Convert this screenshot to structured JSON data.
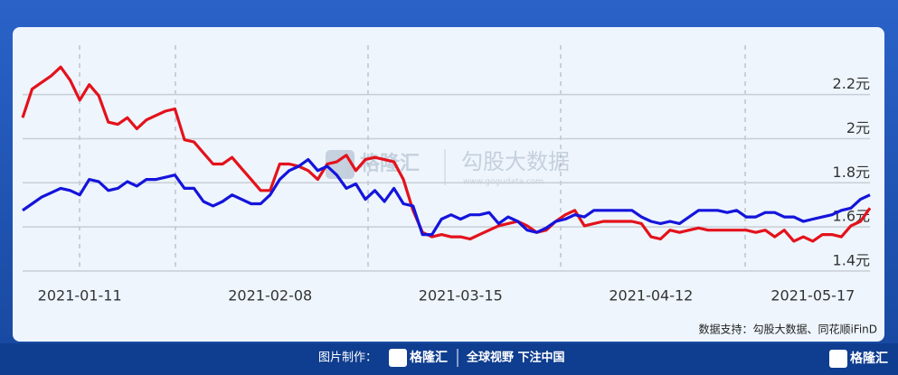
{
  "chart_data": {
    "type": "line",
    "categories": [
      null,
      null,
      null,
      null,
      null,
      null,
      "2021-01-11",
      null,
      null,
      null,
      null,
      null,
      null,
      null,
      null,
      null,
      null,
      null,
      null,
      null,
      null,
      null,
      null,
      null,
      null,
      null,
      "2021-02-08",
      null,
      null,
      null,
      null,
      null,
      null,
      null,
      null,
      null,
      null,
      null,
      null,
      null,
      null,
      null,
      null,
      null,
      null,
      null,
      "2021-03-15",
      null,
      null,
      null,
      null,
      null,
      null,
      null,
      null,
      null,
      null,
      null,
      null,
      null,
      null,
      null,
      null,
      null,
      null,
      null,
      "2021-04-12",
      null,
      null,
      null,
      null,
      null,
      null,
      null,
      null,
      null,
      null,
      null,
      null,
      null,
      null,
      null,
      null,
      "2021-05-17",
      null,
      null,
      null,
      null,
      null,
      null
    ],
    "series": [
      {
        "color": "#e3121c",
        "values": [
          2.05,
          2.18,
          2.21,
          2.24,
          2.28,
          2.22,
          2.13,
          2.2,
          2.15,
          2.03,
          2.02,
          2.05,
          2.0,
          2.04,
          2.06,
          2.08,
          2.09,
          1.95,
          1.94,
          1.89,
          1.84,
          1.84,
          1.87,
          1.82,
          1.77,
          1.72,
          1.72,
          1.84,
          1.84,
          1.83,
          1.81,
          1.77,
          1.84,
          1.85,
          1.88,
          1.81,
          1.86,
          1.87,
          1.86,
          1.85,
          1.77,
          1.63,
          1.53,
          1.51,
          1.52,
          1.51,
          1.51,
          1.5,
          1.52,
          1.54,
          1.56,
          1.57,
          1.58,
          1.56,
          1.53,
          1.54,
          1.58,
          1.61,
          1.63,
          1.56,
          1.57,
          1.58,
          1.58,
          1.58,
          1.58,
          1.57,
          1.51,
          1.5,
          1.54,
          1.53,
          1.54,
          1.55,
          1.54,
          1.54,
          1.54,
          1.54,
          1.54,
          1.53,
          1.54,
          1.51,
          1.54,
          1.49,
          1.51,
          1.49,
          1.52,
          1.52,
          1.51,
          1.56,
          1.58,
          1.64
        ]
      },
      {
        "color": "#1414dc",
        "values": [
          1.63,
          1.66,
          1.69,
          1.71,
          1.73,
          1.72,
          1.7,
          1.77,
          1.76,
          1.72,
          1.73,
          1.76,
          1.74,
          1.77,
          1.77,
          1.78,
          1.79,
          1.73,
          1.73,
          1.67,
          1.65,
          1.67,
          1.7,
          1.68,
          1.66,
          1.66,
          1.7,
          1.77,
          1.81,
          1.83,
          1.86,
          1.81,
          1.83,
          1.79,
          1.73,
          1.75,
          1.68,
          1.72,
          1.67,
          1.73,
          1.66,
          1.65,
          1.52,
          1.52,
          1.59,
          1.61,
          1.59,
          1.61,
          1.61,
          1.62,
          1.57,
          1.6,
          1.58,
          1.54,
          1.53,
          1.55,
          1.58,
          1.59,
          1.61,
          1.6,
          1.63,
          1.63,
          1.63,
          1.63,
          1.63,
          1.6,
          1.58,
          1.57,
          1.58,
          1.57,
          1.6,
          1.63,
          1.63,
          1.63,
          1.62,
          1.63,
          1.6,
          1.6,
          1.62,
          1.62,
          1.6,
          1.6,
          1.58,
          1.59,
          1.6,
          1.61,
          1.63,
          1.64,
          1.68,
          1.7
        ]
      }
    ],
    "ylim": [
      1.334,
      2.42
    ],
    "yticks": [
      {
        "value": 1.4,
        "label": "1.4元"
      },
      {
        "value": 1.6,
        "label": "1.6元"
      },
      {
        "value": 1.8,
        "label": "1.8元"
      },
      {
        "value": 2.0,
        "label": "2元"
      },
      {
        "value": 2.2,
        "label": "2.2元"
      }
    ],
    "grid": true,
    "source": "数据支持：勾股大数据、同花顺iFinD",
    "watermark": {
      "brand": "格隆汇",
      "name": "勾股大数据",
      "url": "www.gogudata.com"
    },
    "footer": {
      "made_by": "图片制作：",
      "brand": "格隆汇",
      "slogan": "全球视野 下注中国",
      "corner": "格隆汇"
    }
  }
}
